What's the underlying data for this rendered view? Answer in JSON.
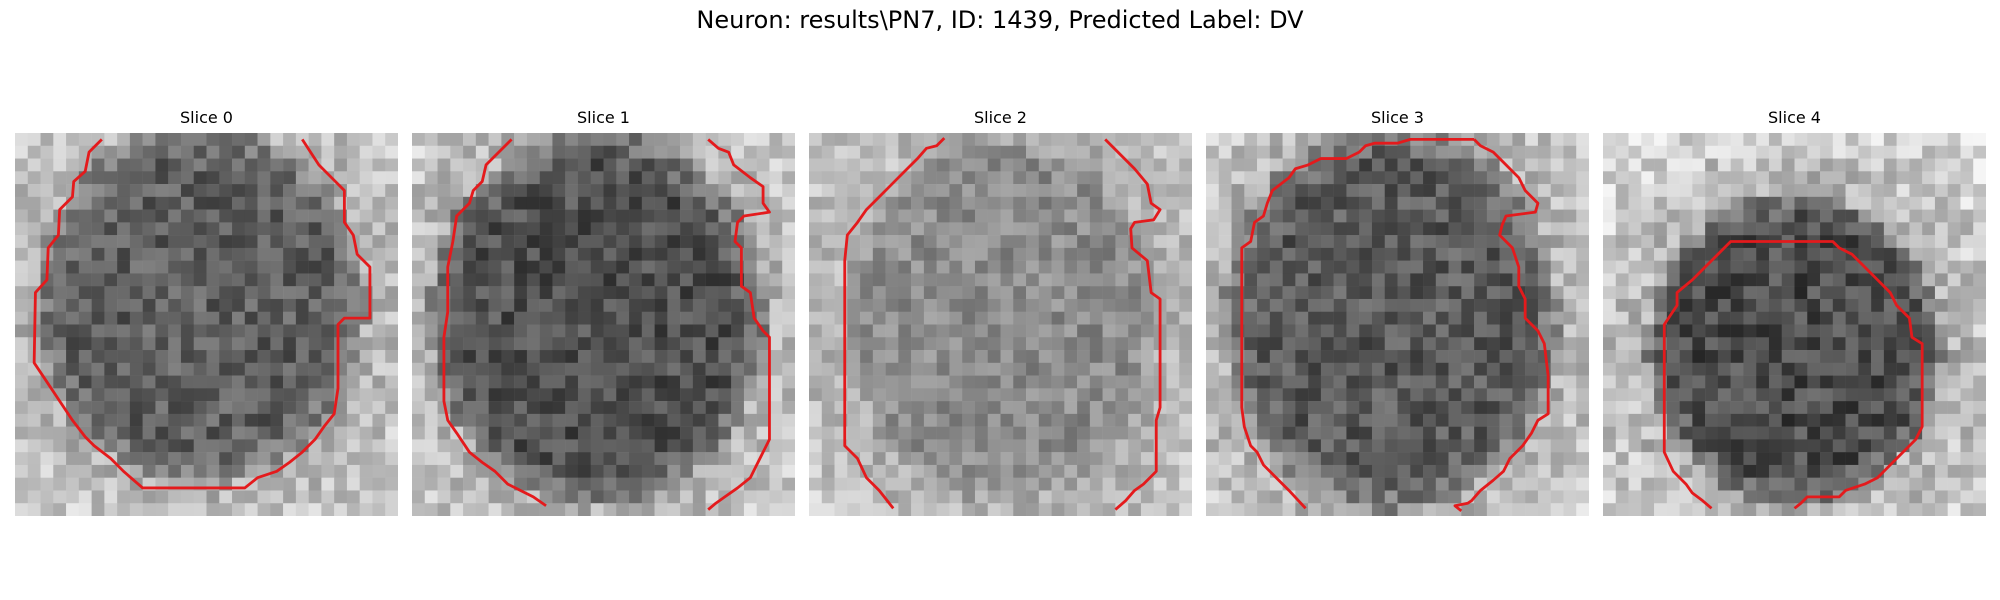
{
  "figure": {
    "title": "Neuron: results\\PN7, ID: 1439, Predicted Label: DV"
  },
  "panels": [
    {
      "title": "Slice 0",
      "contrast": 1.0
    },
    {
      "title": "Slice 1",
      "contrast": 1.0
    },
    {
      "title": "Slice 2",
      "contrast": 0.85
    },
    {
      "title": "Slice 3",
      "contrast": 1.0
    },
    {
      "title": "Slice 4",
      "contrast": 1.1
    }
  ],
  "colors": {
    "contour": "#e41a1c",
    "background": "#ffffff"
  }
}
